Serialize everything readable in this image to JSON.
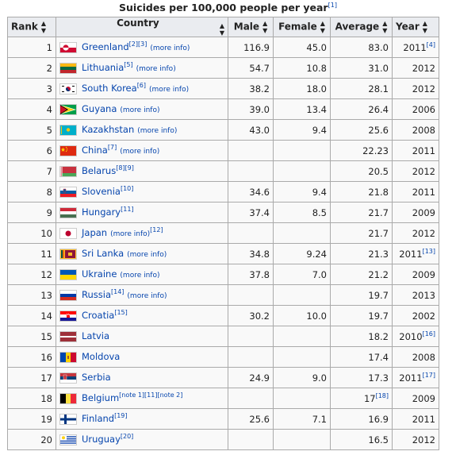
{
  "caption": {
    "title": "Suicides per 100,000 people per year",
    "ref": "[1]"
  },
  "headers": {
    "rank": "Rank",
    "country": "Country",
    "male": "Male",
    "female": "Female",
    "average": "Average",
    "year": "Year"
  },
  "more_info": "(more info)",
  "rows": [
    {
      "rank": "1",
      "flag": "greenland",
      "country": "Greenland",
      "sup": "[2][3]",
      "more": true,
      "sup_after": "",
      "male": "116.9",
      "female": "45.0",
      "average": "83.0",
      "avg_sup": "",
      "year": "2011",
      "year_sup": "[4]"
    },
    {
      "rank": "2",
      "flag": "lithuania",
      "country": "Lithuania",
      "sup": "[5]",
      "more": true,
      "sup_after": "",
      "male": "54.7",
      "female": "10.8",
      "average": "31.0",
      "avg_sup": "",
      "year": "2012",
      "year_sup": ""
    },
    {
      "rank": "3",
      "flag": "south-korea",
      "country": "South Korea",
      "sup": "[6]",
      "more": true,
      "sup_after": "",
      "male": "38.2",
      "female": "18.0",
      "average": "28.1",
      "avg_sup": "",
      "year": "2012",
      "year_sup": ""
    },
    {
      "rank": "4",
      "flag": "guyana",
      "country": "Guyana",
      "sup": "",
      "more": true,
      "sup_after": "",
      "male": "39.0",
      "female": "13.4",
      "average": "26.4",
      "avg_sup": "",
      "year": "2006",
      "year_sup": ""
    },
    {
      "rank": "5",
      "flag": "kazakhstan",
      "country": "Kazakhstan",
      "sup": "",
      "more": true,
      "sup_after": "",
      "male": "43.0",
      "female": "9.4",
      "average": "25.6",
      "avg_sup": "",
      "year": "2008",
      "year_sup": ""
    },
    {
      "rank": "6",
      "flag": "china",
      "country": "China",
      "sup": "[7]",
      "more": true,
      "sup_after": "",
      "male": "",
      "female": "",
      "average": "22.23",
      "avg_sup": "",
      "year": "2011",
      "year_sup": ""
    },
    {
      "rank": "7",
      "flag": "belarus",
      "country": "Belarus",
      "sup": "[8][9]",
      "more": false,
      "sup_after": "",
      "male": "",
      "female": "",
      "average": "20.5",
      "avg_sup": "",
      "year": "2012",
      "year_sup": ""
    },
    {
      "rank": "8",
      "flag": "slovenia",
      "country": "Slovenia",
      "sup": "[10]",
      "more": false,
      "sup_after": "",
      "male": "34.6",
      "female": "9.4",
      "average": "21.8",
      "avg_sup": "",
      "year": "2011",
      "year_sup": ""
    },
    {
      "rank": "9",
      "flag": "hungary",
      "country": "Hungary",
      "sup": "[11]",
      "more": false,
      "sup_after": "",
      "male": "37.4",
      "female": "8.5",
      "average": "21.7",
      "avg_sup": "",
      "year": "2009",
      "year_sup": ""
    },
    {
      "rank": "10",
      "flag": "japan",
      "country": "Japan",
      "sup": "",
      "more": true,
      "sup_after": "[12]",
      "male": "",
      "female": "",
      "average": "21.7",
      "avg_sup": "",
      "year": "2012",
      "year_sup": ""
    },
    {
      "rank": "11",
      "flag": "sri-lanka",
      "country": "Sri Lanka",
      "sup": "",
      "more": true,
      "sup_after": "",
      "male": "34.8",
      "female": "9.24",
      "average": "21.3",
      "avg_sup": "",
      "year": "2011",
      "year_sup": "[13]"
    },
    {
      "rank": "12",
      "flag": "ukraine",
      "country": "Ukraine",
      "sup": "",
      "more": true,
      "sup_after": "",
      "male": "37.8",
      "female": "7.0",
      "average": "21.2",
      "avg_sup": "",
      "year": "2009",
      "year_sup": ""
    },
    {
      "rank": "13",
      "flag": "russia",
      "country": "Russia",
      "sup": "[14]",
      "more": true,
      "sup_after": "",
      "male": "",
      "female": "",
      "average": "19.7",
      "avg_sup": "",
      "year": "2013",
      "year_sup": ""
    },
    {
      "rank": "14",
      "flag": "croatia",
      "country": "Croatia",
      "sup": "[15]",
      "more": false,
      "sup_after": "",
      "male": "30.2",
      "female": "10.0",
      "average": "19.7",
      "avg_sup": "",
      "year": "2002",
      "year_sup": ""
    },
    {
      "rank": "15",
      "flag": "latvia",
      "country": "Latvia",
      "sup": "",
      "more": false,
      "sup_after": "",
      "male": "",
      "female": "",
      "average": "18.2",
      "avg_sup": "",
      "year": "2010",
      "year_sup": "[16]"
    },
    {
      "rank": "16",
      "flag": "moldova",
      "country": "Moldova",
      "sup": "",
      "more": false,
      "sup_after": "",
      "male": "",
      "female": "",
      "average": "17.4",
      "avg_sup": "",
      "year": "2008",
      "year_sup": ""
    },
    {
      "rank": "17",
      "flag": "serbia",
      "country": "Serbia",
      "sup": "",
      "more": false,
      "sup_after": "",
      "male": "24.9",
      "female": "9.0",
      "average": "17.3",
      "avg_sup": "",
      "year": "2011",
      "year_sup": "[17]"
    },
    {
      "rank": "18",
      "flag": "belgium",
      "country": "Belgium",
      "sup": "[note 1][11][note 2]",
      "more": false,
      "sup_after": "",
      "male": "",
      "female": "",
      "average": "17",
      "avg_sup": "[18]",
      "year": "2009",
      "year_sup": ""
    },
    {
      "rank": "19",
      "flag": "finland",
      "country": "Finland",
      "sup": "[19]",
      "more": false,
      "sup_after": "",
      "male": "25.6",
      "female": "7.1",
      "average": "16.9",
      "avg_sup": "",
      "year": "2011",
      "year_sup": ""
    },
    {
      "rank": "20",
      "flag": "uruguay",
      "country": "Uruguay",
      "sup": "[20]",
      "more": false,
      "sup_after": "",
      "male": "",
      "female": "",
      "average": "16.5",
      "avg_sup": "",
      "year": "2012",
      "year_sup": ""
    }
  ]
}
